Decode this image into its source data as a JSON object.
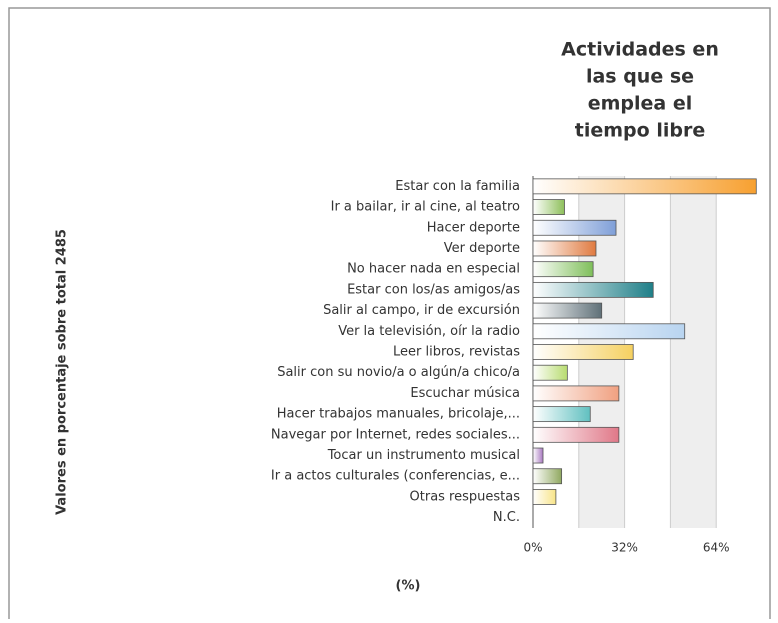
{
  "chart_data": {
    "type": "barh",
    "title": [
      "Actividades en",
      "las que se",
      "emplea el",
      "tiempo libre"
    ],
    "ylabel": "Valores en porcentaje sobre total 2485",
    "xlabel": "(%)",
    "categories": [
      "Estar con la familia",
      "Ir a bailar, ir al cine, al teatro",
      "Hacer deporte",
      "Ver deporte",
      "No hacer nada en especial",
      "Estar con los/as amigos/as",
      "Salir al campo, ir de excursión",
      "Ver la televisión, oír la radio",
      "Leer libros, revistas",
      "Salir con su novio/a o algún/a chico/a",
      "Escuchar música",
      "Hacer trabajos manuales, bricolaje,...",
      "Navegar por Internet, redes sociales...",
      "Tocar un instrumento musical",
      "Ir a actos culturales (conferencias, e...",
      "Otras respuestas",
      "N.C."
    ],
    "values": [
      78,
      11,
      29,
      22,
      21,
      42,
      24,
      53,
      35,
      12,
      30,
      20,
      30,
      3.5,
      10,
      8,
      0
    ],
    "colors": [
      "#f7a030",
      "#8dbf5a",
      "#7f9fd8",
      "#e07a40",
      "#7fbf5a",
      "#1f7f88",
      "#5f7078",
      "#b8d4f0",
      "#f5d060",
      "#b8dc70",
      "#f0a080",
      "#60c0c0",
      "#e07888",
      "#a878c0",
      "#90a860",
      "#f8e488",
      "#cccccc"
    ],
    "xlim": [
      0,
      80
    ],
    "xticks": [
      {
        "value": 0,
        "label": "0%"
      },
      {
        "value": 32,
        "label": "32%"
      },
      {
        "value": 64,
        "label": "64%"
      }
    ],
    "xminor": [
      16,
      48
    ],
    "grid": true
  }
}
